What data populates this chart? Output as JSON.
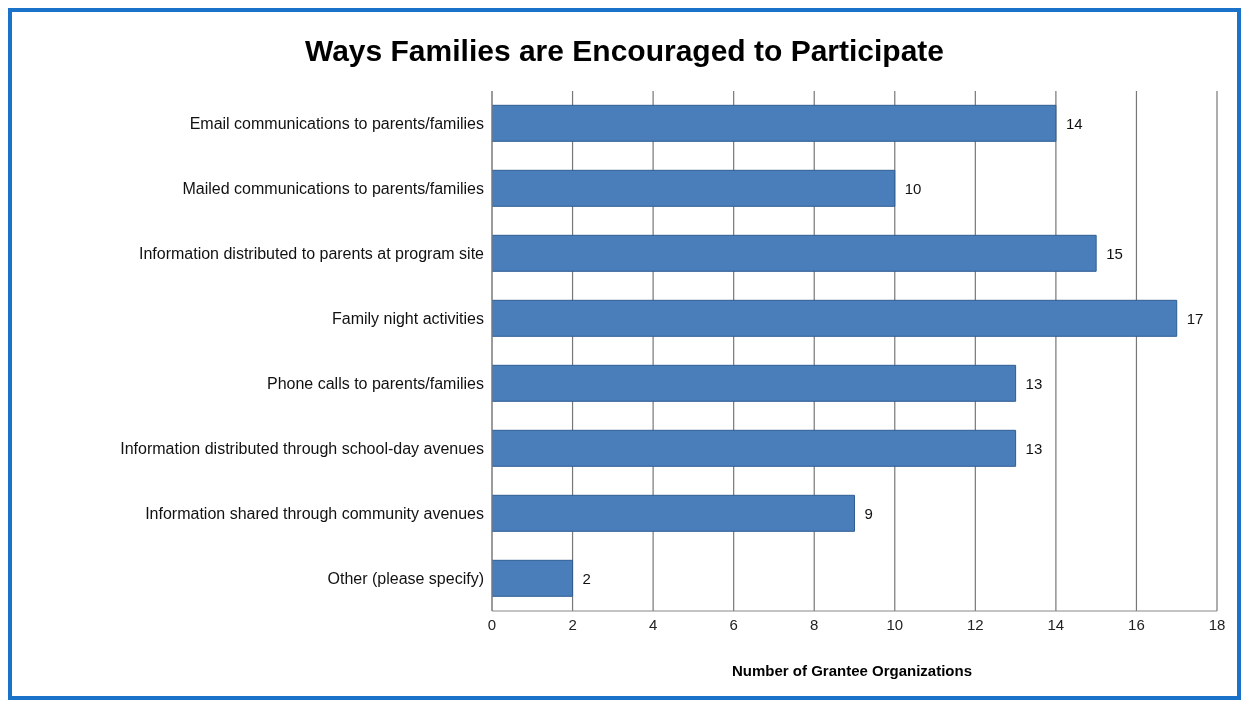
{
  "chart_data": {
    "type": "bar",
    "orientation": "horizontal",
    "title": "Ways Families are Encouraged to Participate",
    "xlabel": "Number of Grantee Organizations",
    "categories": [
      "Email communications to parents/families",
      "Mailed communications to parents/families",
      "Information distributed to parents at program site",
      "Family night activities",
      "Phone calls to parents/families",
      "Information distributed through school-day avenues",
      "Information shared through community avenues",
      "Other (please specify)"
    ],
    "values": [
      14,
      10,
      15,
      17,
      13,
      13,
      9,
      2
    ],
    "color": "#4a7ebb",
    "xlim": [
      0,
      18
    ],
    "xticks": [
      0,
      2,
      4,
      6,
      8,
      10,
      12,
      14,
      16,
      18
    ],
    "grid": "x",
    "data_labels": true
  }
}
